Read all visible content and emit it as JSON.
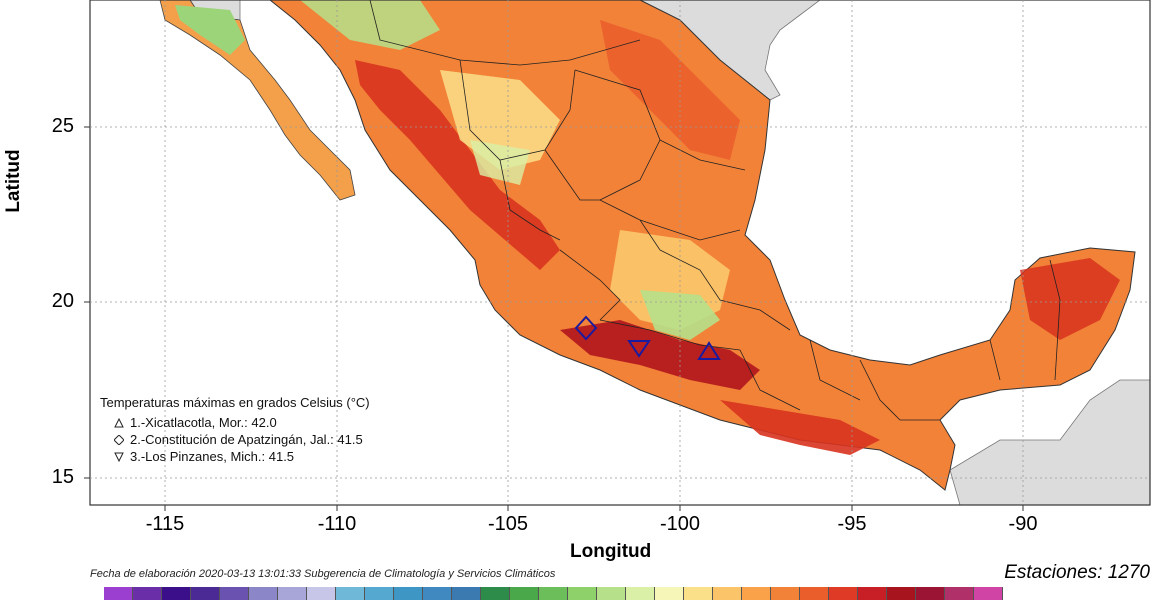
{
  "axes": {
    "ylabel": "Latitud",
    "xlabel": "Longitud",
    "yticks": [
      "25",
      "20",
      "15"
    ],
    "xticks": [
      "-115",
      "-110",
      "-105",
      "-100",
      "-95",
      "-90"
    ]
  },
  "legend": {
    "title": "Temperaturas máximas en grados Celsius (°C)",
    "items": [
      {
        "symbol": "triangle-up",
        "text": "1.-Xicatlacotla, Mor.: 42.0"
      },
      {
        "symbol": "diamond",
        "text": "2.-Constitución de Apatzingán, Jal.: 41.5"
      },
      {
        "symbol": "triangle-down",
        "text": "3.-Los Pinzanes, Mich.: 41.5"
      }
    ]
  },
  "footer": "Fecha de elaboración 2020-03-13 13:01:33 Subgerencia de Climatología y Servicios Climáticos",
  "stations": "Estaciones:  1270",
  "colors": {
    "ocean": "#ffffff",
    "land_outside": "#dcdcdc",
    "scale": [
      "#9b3fd1",
      "#6a2fa8",
      "#3c0f8a",
      "#4b2a96",
      "#6a52b0",
      "#8a86c8",
      "#a8a6d8",
      "#c8c6e8",
      "#6fb8d8",
      "#55a8d0",
      "#3d96c4",
      "#3f88c0",
      "#3a7ab0",
      "#2d8c4a",
      "#4aa84a",
      "#6cbe5a",
      "#8ed06a",
      "#b6e08a",
      "#daf0a6",
      "#f6f6b8",
      "#fbe08a",
      "#fbc468",
      "#f9a24a",
      "#f28238",
      "#ea5e2c",
      "#de3a26",
      "#c81e26",
      "#a8141e",
      "#9c1434",
      "#b0306a",
      "#d044a6"
    ]
  },
  "markers": [
    {
      "symbol": "diamond",
      "lon": -102.7,
      "lat": 19.2
    },
    {
      "symbol": "triangle-down",
      "lon": -101.2,
      "lat": 18.8
    },
    {
      "symbol": "triangle-up",
      "lon": -99.1,
      "lat": 18.6
    }
  ]
}
